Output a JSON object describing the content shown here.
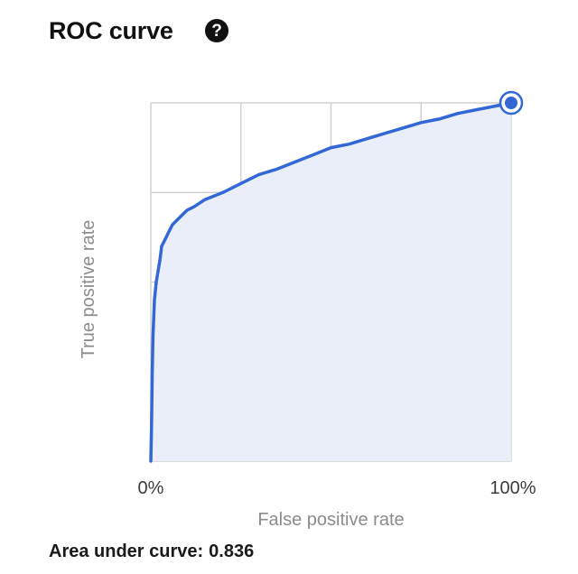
{
  "header": {
    "title": "ROC curve",
    "help_icon": "help-circle-icon"
  },
  "chart_data": {
    "type": "line",
    "title": "ROC curve",
    "xlabel": "False positive rate",
    "ylabel": "True positive rate",
    "xlim": [
      0,
      1
    ],
    "ylim": [
      0,
      1
    ],
    "x_tick_labels": [
      "0%",
      "100%"
    ],
    "grid": true,
    "area_fill": true,
    "series": [
      {
        "x": [
          0,
          0.002,
          0.004,
          0.006,
          0.01,
          0.015,
          0.02,
          0.025,
          0.03,
          0.04,
          0.05,
          0.06,
          0.08,
          0.1,
          0.12,
          0.15,
          0.2,
          0.25,
          0.3,
          0.35,
          0.4,
          0.45,
          0.5,
          0.55,
          0.6,
          0.65,
          0.7,
          0.75,
          0.8,
          0.85,
          0.9,
          0.95,
          1.0
        ],
        "y": [
          0,
          0.1,
          0.25,
          0.35,
          0.45,
          0.5,
          0.53,
          0.56,
          0.6,
          0.62,
          0.64,
          0.66,
          0.68,
          0.7,
          0.71,
          0.73,
          0.75,
          0.775,
          0.8,
          0.815,
          0.835,
          0.855,
          0.875,
          0.885,
          0.9,
          0.915,
          0.93,
          0.945,
          0.955,
          0.97,
          0.98,
          0.99,
          1.0
        ],
        "color": "#3367d6"
      }
    ],
    "highlight_point": {
      "x": 1.0,
      "y": 1.0
    }
  },
  "colors": {
    "line": "#3367d6",
    "area": "#e9eef8",
    "grid": "#d0d0d0",
    "marker": "#3367d6"
  },
  "footer": {
    "auc_label": "Area under curve:",
    "auc_value": "0.836"
  }
}
